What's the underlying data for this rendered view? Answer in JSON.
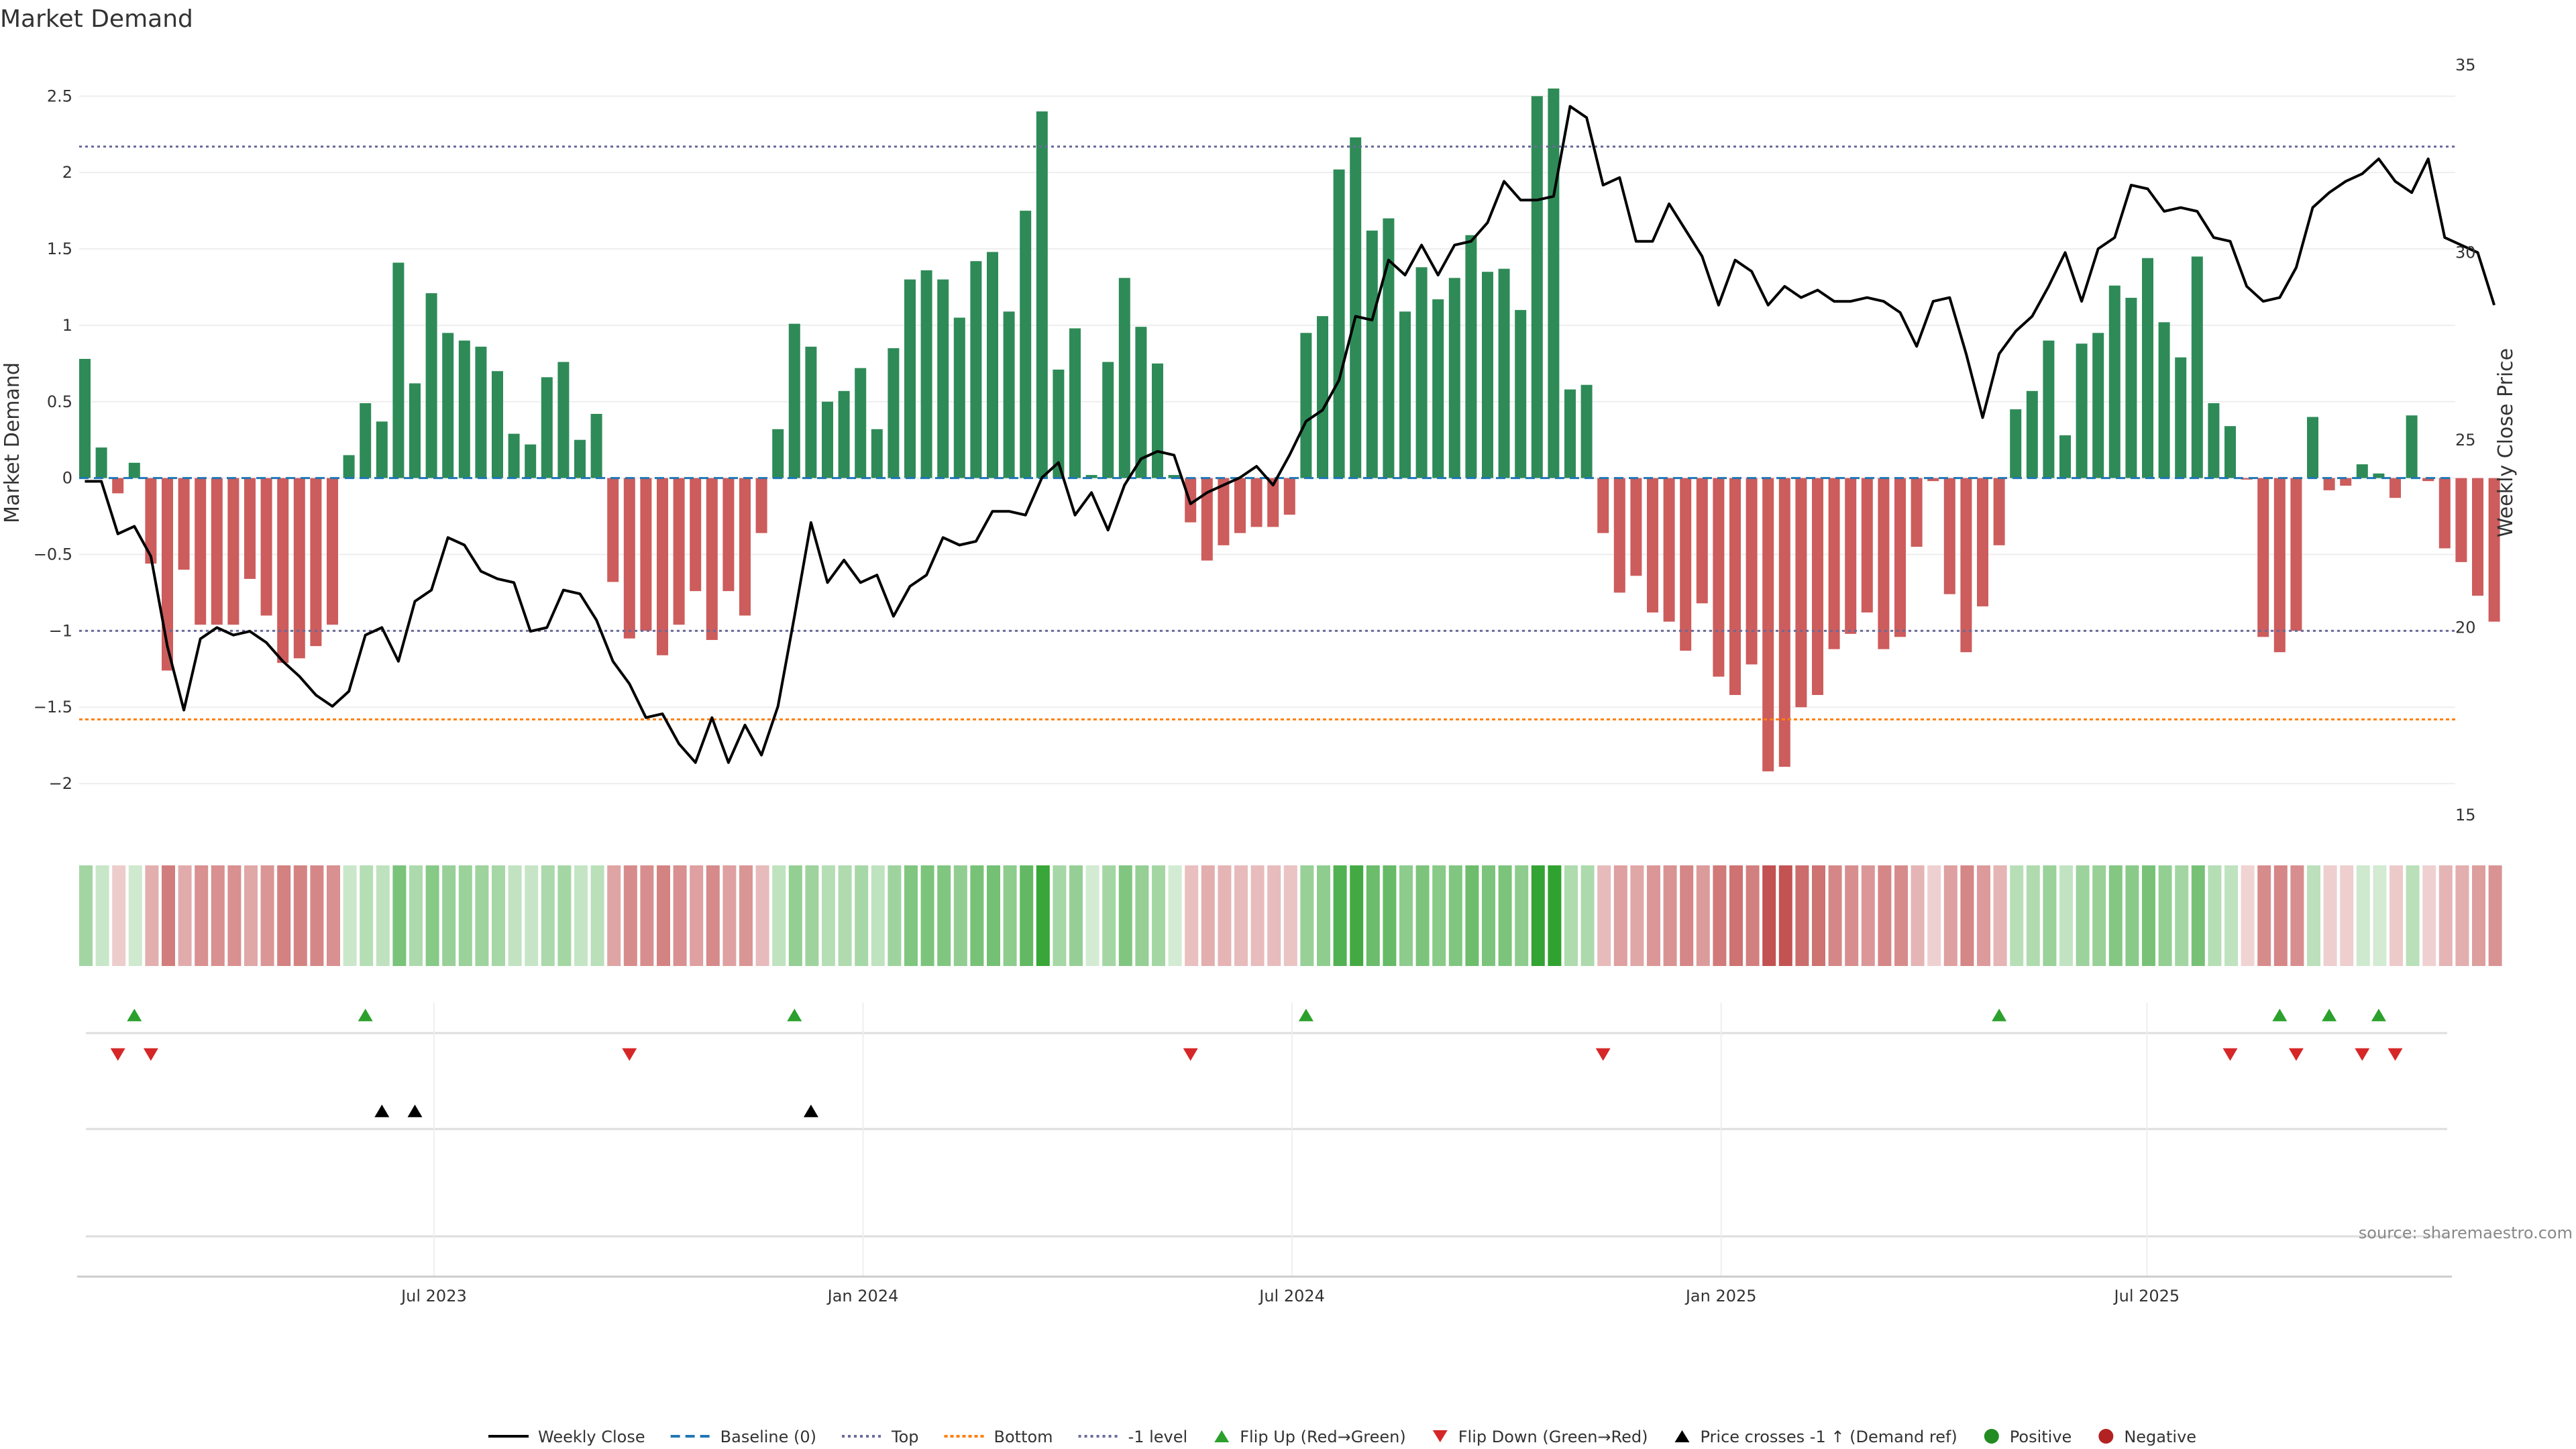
{
  "chart_data": {
    "type": "bar",
    "title": "Market Demand",
    "ylabel_left": "Market Demand",
    "ylabel_right": "Weekly Close Price",
    "source": "source: sharemaestro.com",
    "ylim_left": [
      -2.25,
      2.8
    ],
    "ylim_right": [
      15,
      35
    ],
    "yticks_left": [
      {
        "v": 2.5,
        "label": "2.5"
      },
      {
        "v": 2,
        "label": "2"
      },
      {
        "v": 1.5,
        "label": "1.5"
      },
      {
        "v": 1,
        "label": "1"
      },
      {
        "v": 0.5,
        "label": "0.5"
      },
      {
        "v": 0,
        "label": "0"
      },
      {
        "v": -0.5,
        "label": "−0.5"
      },
      {
        "v": -1,
        "label": "−1"
      },
      {
        "v": -1.5,
        "label": "−1.5"
      },
      {
        "v": -2,
        "label": "−2"
      }
    ],
    "yticks_right": [
      {
        "v": 35,
        "label": "35"
      },
      {
        "v": 30,
        "label": "30"
      },
      {
        "v": 25,
        "label": "25"
      },
      {
        "v": 20,
        "label": "20"
      },
      {
        "v": 15,
        "label": "15"
      }
    ],
    "x_tick_labels": [
      {
        "week": 21.5,
        "label": "Jul 2023"
      },
      {
        "week": 47.5,
        "label": "Jan 2024"
      },
      {
        "week": 73.5,
        "label": "Jul 2024"
      },
      {
        "week": 99.5,
        "label": "Jan 2025"
      },
      {
        "week": 125.3,
        "label": "Jul 2025"
      }
    ],
    "reference_lines": {
      "top": 2.17,
      "bottom": -1.58,
      "minus_one_level": -1.0,
      "baseline": 0
    },
    "demand": [
      0.78,
      0.2,
      -0.1,
      0.1,
      -0.56,
      -1.26,
      -0.6,
      -0.96,
      -0.96,
      -0.96,
      -0.66,
      -0.9,
      -1.21,
      -1.18,
      -1.1,
      -0.96,
      0.15,
      0.49,
      0.37,
      1.41,
      0.62,
      1.21,
      0.95,
      0.9,
      0.86,
      0.7,
      0.29,
      0.22,
      0.66,
      0.76,
      0.25,
      0.42,
      -0.68,
      -1.05,
      -1.0,
      -1.16,
      -0.96,
      -0.74,
      -1.06,
      -0.74,
      -0.9,
      -0.36,
      0.32,
      1.01,
      0.86,
      0.5,
      0.57,
      0.72,
      0.32,
      0.85,
      1.3,
      1.36,
      1.3,
      1.05,
      1.42,
      1.48,
      1.09,
      1.75,
      2.4,
      0.71,
      0.98,
      0.02,
      0.76,
      1.31,
      0.99,
      0.75,
      0.02,
      -0.29,
      -0.54,
      -0.44,
      -0.36,
      -0.32,
      -0.32,
      -0.24,
      0.95,
      1.06,
      2.02,
      2.23,
      1.62,
      1.7,
      1.09,
      1.38,
      1.17,
      1.31,
      1.59,
      1.35,
      1.37,
      1.1,
      2.5,
      2.55,
      0.58,
      0.61,
      -0.36,
      -0.75,
      -0.64,
      -0.88,
      -0.94,
      -1.13,
      -0.82,
      -1.3,
      -1.42,
      -1.22,
      -1.92,
      -1.89,
      -1.5,
      -1.42,
      -1.12,
      -1.02,
      -0.88,
      -1.12,
      -1.04,
      -0.45,
      -0.02,
      -0.76,
      -1.14,
      -0.84,
      -0.44,
      0.45,
      0.57,
      0.9,
      0.28,
      0.88,
      0.95,
      1.26,
      1.18,
      1.44,
      1.02,
      0.79,
      1.45,
      0.49,
      0.34,
      -0.01,
      -1.04,
      -1.14,
      -1.0,
      0.4,
      -0.08,
      -0.05,
      0.09,
      0.03,
      -0.13,
      0.41,
      -0.02,
      -0.46,
      -0.55,
      -0.77,
      -0.94
    ],
    "weekly_close": [
      23.9,
      23.9,
      22.5,
      22.7,
      21.9,
      19.5,
      17.8,
      19.7,
      20.0,
      19.8,
      19.9,
      19.6,
      19.1,
      18.7,
      18.2,
      17.9,
      18.3,
      19.8,
      20.0,
      19.1,
      20.7,
      21.0,
      22.4,
      22.2,
      21.5,
      21.3,
      21.2,
      19.9,
      20.0,
      21.0,
      20.9,
      20.2,
      19.1,
      18.5,
      17.6,
      17.7,
      16.9,
      16.4,
      17.6,
      16.4,
      17.4,
      16.6,
      17.9,
      20.3,
      22.8,
      21.2,
      21.8,
      21.2,
      21.4,
      20.3,
      21.1,
      21.4,
      22.4,
      22.2,
      22.3,
      23.1,
      23.1,
      23.0,
      24.0,
      24.4,
      23.0,
      23.6,
      22.6,
      23.8,
      24.5,
      24.7,
      24.6,
      23.3,
      23.6,
      23.8,
      24.0,
      24.3,
      23.8,
      24.6,
      25.5,
      25.8,
      26.6,
      28.3,
      28.2,
      29.8,
      29.4,
      30.2,
      29.4,
      30.2,
      30.3,
      30.8,
      31.9,
      31.4,
      31.4,
      31.5,
      33.9,
      33.6,
      31.8,
      32.0,
      30.3,
      30.3,
      31.3,
      30.6,
      29.9,
      28.6,
      29.8,
      29.5,
      28.6,
      29.1,
      28.8,
      29.0,
      28.7,
      28.7,
      28.8,
      28.7,
      28.4,
      27.5,
      28.7,
      28.8,
      27.3,
      25.6,
      27.3,
      27.9,
      28.3,
      29.1,
      30.0,
      28.7,
      30.1,
      30.4,
      31.8,
      31.7,
      31.1,
      31.2,
      31.1,
      30.4,
      30.3,
      29.1,
      28.7,
      28.8,
      29.6,
      31.2,
      31.6,
      31.9,
      32.1,
      32.5,
      31.9,
      31.6,
      32.5,
      30.4,
      30.2,
      30.0,
      28.6
    ],
    "heat_strip": [
      0.78,
      0.2,
      -0.1,
      0.1,
      -0.56,
      -1.26,
      -0.6,
      -0.96,
      -0.96,
      -0.96,
      -0.66,
      -0.9,
      -1.21,
      -1.18,
      -1.1,
      -0.96,
      0.15,
      0.49,
      0.37,
      1.41,
      0.62,
      1.21,
      0.95,
      0.9,
      0.86,
      0.7,
      0.29,
      0.22,
      0.66,
      0.76,
      0.25,
      0.42,
      -0.68,
      -1.05,
      -1.0,
      -1.16,
      -0.96,
      -0.74,
      -1.06,
      -0.74,
      -0.9,
      -0.36,
      0.32,
      1.01,
      0.86,
      0.5,
      0.57,
      0.72,
      0.32,
      0.85,
      1.3,
      1.36,
      1.3,
      1.05,
      1.42,
      1.48,
      1.09,
      1.75,
      2.4,
      0.71,
      0.98,
      0.02,
      0.76,
      1.31,
      0.99,
      0.75,
      0.02,
      -0.29,
      -0.54,
      -0.44,
      -0.36,
      -0.32,
      -0.32,
      -0.24,
      0.95,
      1.06,
      2.02,
      2.23,
      1.62,
      1.7,
      1.09,
      1.38,
      1.17,
      1.31,
      1.59,
      1.35,
      1.37,
      1.1,
      2.5,
      2.55,
      0.58,
      0.61,
      -0.36,
      -0.75,
      -0.64,
      -0.88,
      -0.94,
      -1.13,
      -0.82,
      -1.3,
      -1.42,
      -1.22,
      -1.92,
      -1.89,
      -1.5,
      -1.42,
      -1.12,
      -1.02,
      -0.88,
      -1.12,
      -1.04,
      -0.45,
      -0.02,
      -0.76,
      -1.14,
      -0.84,
      -0.44,
      0.45,
      0.57,
      0.9,
      0.28,
      0.88,
      0.95,
      1.26,
      1.18,
      1.44,
      1.02,
      0.79,
      1.45,
      0.49,
      0.34,
      -0.01,
      -1.04,
      -1.14,
      -1.0,
      0.4,
      -0.08,
      -0.05,
      0.09,
      0.03,
      -0.13,
      0.41,
      -0.02,
      -0.46,
      -0.55,
      -0.77,
      -0.94
    ],
    "flip_up_weeks": [
      3,
      17,
      43,
      74,
      116,
      133,
      136,
      139
    ],
    "flip_down_weeks": [
      2,
      4,
      33,
      67,
      92,
      130,
      134,
      138,
      140
    ],
    "price_cross_weeks": [
      18,
      20,
      44
    ],
    "colors": {
      "positive": "#2e8b57",
      "negative": "#cd5c5c",
      "price_line": "#000000",
      "baseline": "#1f77b4",
      "top_line": "#6a6a9a",
      "bottom_line": "#ff7f0e",
      "minus_one_line": "#6a6a9a",
      "flip_up": "#2ca02c",
      "flip_down": "#d62728",
      "price_cross": "#000000",
      "positive_dot": "#228b22",
      "negative_dot": "#b22222"
    },
    "legend": [
      {
        "key": "weekly_close",
        "label": "Weekly Close"
      },
      {
        "key": "baseline",
        "label": "Baseline (0)"
      },
      {
        "key": "top",
        "label": "Top"
      },
      {
        "key": "bottom",
        "label": "Bottom"
      },
      {
        "key": "minus_one",
        "label": "-1 level"
      },
      {
        "key": "flip_up",
        "label": "Flip Up (Red→Green)"
      },
      {
        "key": "flip_down",
        "label": "Flip Down (Green→Red)"
      },
      {
        "key": "price_cross",
        "label": "Price crosses -1 ↑ (Demand ref)"
      },
      {
        "key": "positive",
        "label": "Positive"
      },
      {
        "key": "negative",
        "label": "Negative"
      }
    ]
  }
}
